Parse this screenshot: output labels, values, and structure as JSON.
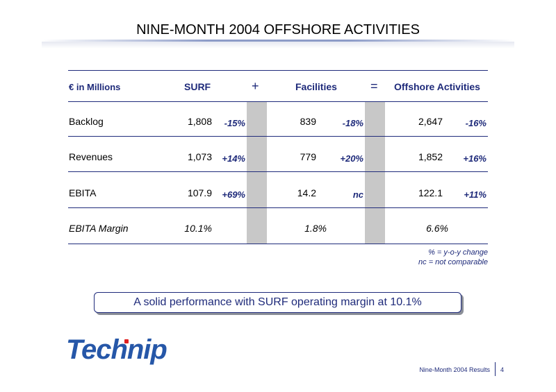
{
  "title": "NINE-MONTH 2004 OFFSHORE ACTIVITIES",
  "table": {
    "header": {
      "unit": "€ in Millions",
      "surf": "SURF",
      "plus": "+",
      "facilities": "Facilities",
      "equals": "=",
      "offshore": "Offshore Activities"
    },
    "rows": [
      {
        "label": "Backlog",
        "surf": "1,808",
        "surf_chg": "-15%",
        "fac": "839",
        "fac_chg": "-18%",
        "off": "2,647",
        "off_chg": "-16%"
      },
      {
        "label": "Revenues",
        "surf": "1,073",
        "surf_chg": "+14%",
        "fac": "779",
        "fac_chg": "+20%",
        "off": "1,852",
        "off_chg": "+16%"
      },
      {
        "label": "EBITA",
        "surf": "107.9",
        "surf_chg": "+69%",
        "fac": "14.2",
        "fac_chg": "nc",
        "off": "122.1",
        "off_chg": "+11%"
      },
      {
        "label": "EBITA Margin",
        "surf": "10.1%",
        "fac": "1.8%",
        "off": "6.6%"
      }
    ]
  },
  "notes": [
    "% = y-o-y change",
    "nc = not comparable"
  ],
  "callout": "A solid performance with SURF operating margin at 10.1%",
  "logo": "Technip",
  "footer": {
    "text": "Nine-Month 2004 Results",
    "page": "4"
  },
  "colors": {
    "accent": "#1e2a7a",
    "logo": "#2657a8",
    "shade": "#c8c8c8"
  }
}
